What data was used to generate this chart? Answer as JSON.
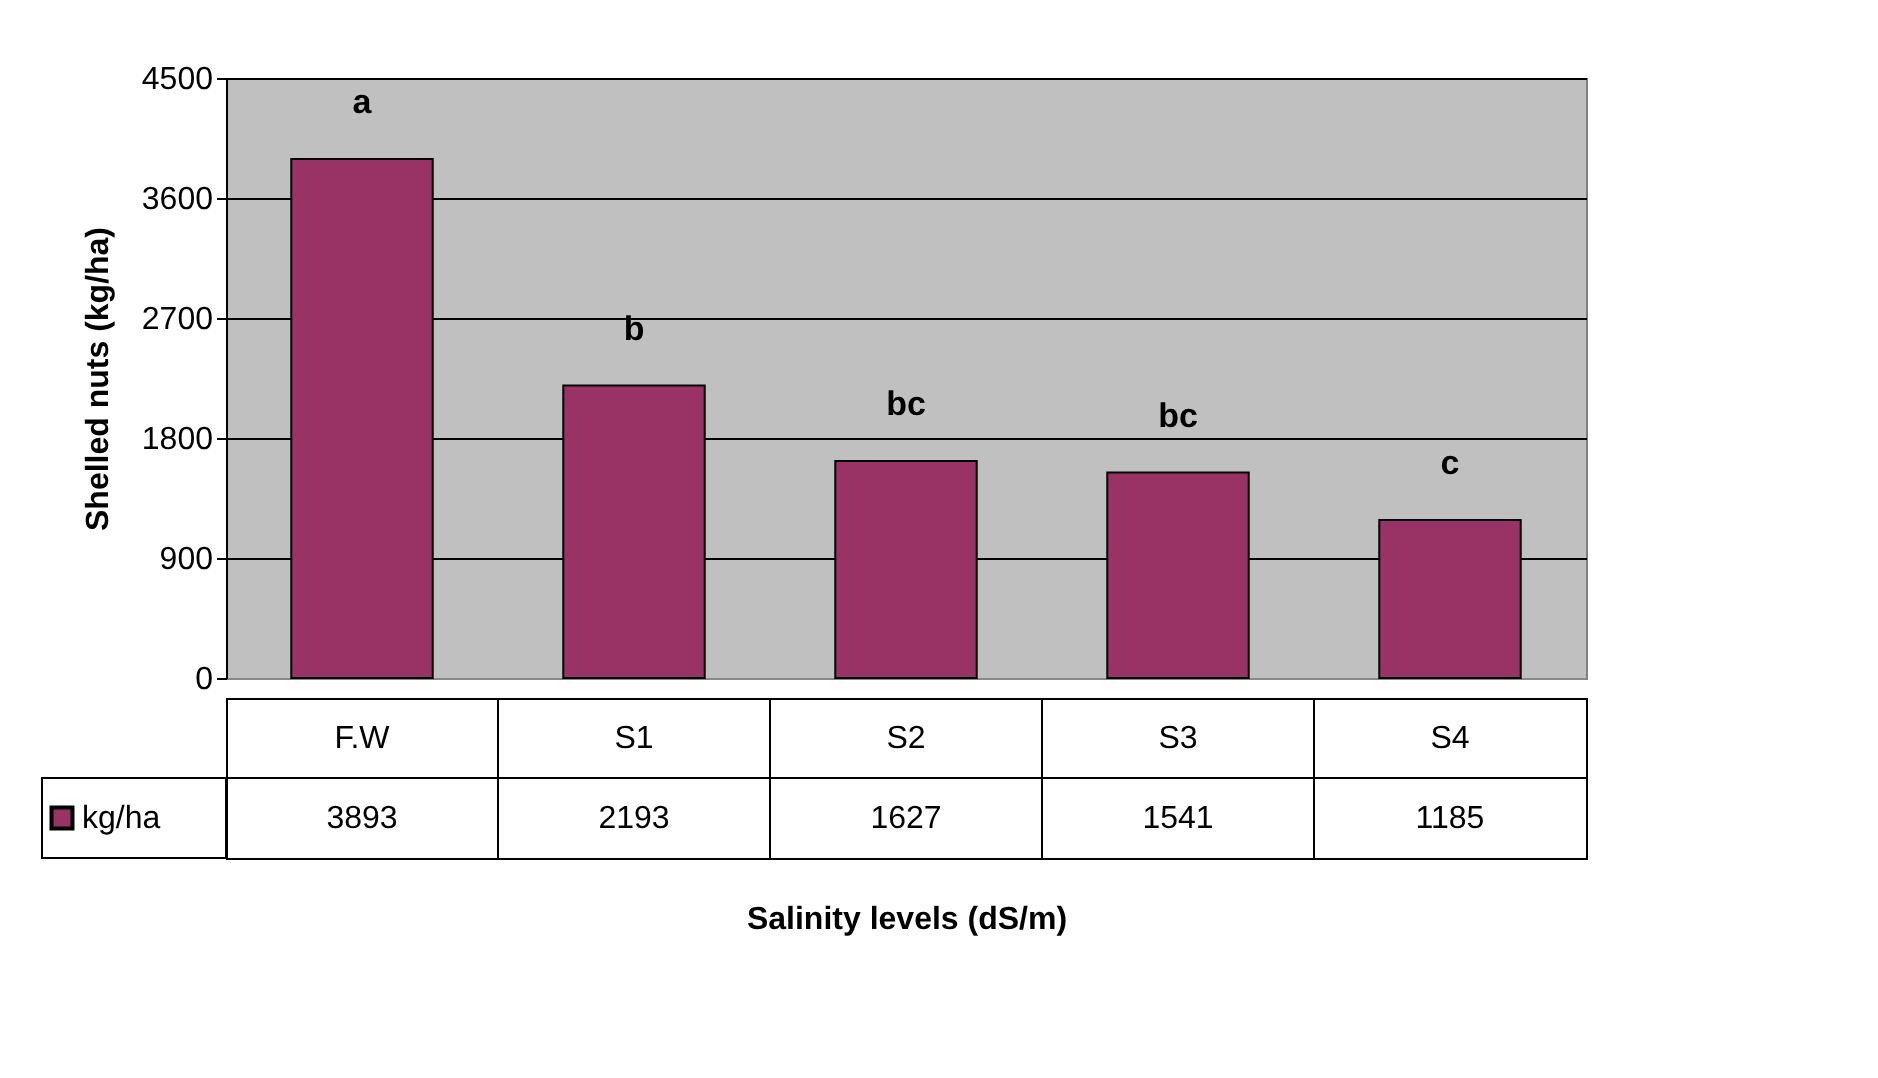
{
  "chart_data": {
    "type": "bar",
    "xlabel": "Salinity levels (dS/m)",
    "ylabel": "Shelled nuts (kg/ha)",
    "categories": [
      "F.W",
      "S1",
      "S2",
      "S3",
      "S4"
    ],
    "series": [
      {
        "name": "kg/ha",
        "color": "#993366",
        "values": [
          3893,
          2193,
          1627,
          1541,
          1185
        ]
      }
    ],
    "annotations": [
      {
        "text": "a",
        "x": "F.W",
        "y": 3893
      },
      {
        "text": "b",
        "x": "S1",
        "y": 2193
      },
      {
        "text": "bc",
        "x": "S2",
        "y": 1627
      },
      {
        "text": "bc",
        "x": "S3",
        "y": 1541
      },
      {
        "text": "c",
        "x": "S4",
        "y": 1185
      }
    ],
    "ylim": [
      0,
      4500
    ],
    "yticks": [
      0,
      900,
      1800,
      2700,
      3600,
      4500
    ],
    "grid": "y",
    "legend": "bottom",
    "data_labels": true
  }
}
